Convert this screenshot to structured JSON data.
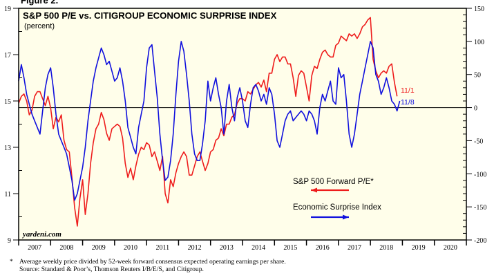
{
  "figure_label": "Figure 2.",
  "footnote": {
    "star": "*",
    "line1": "Average weekly price divided by 52-week forward consensus expected operating earnings per share.",
    "line2": "Source: Standard & Poor’s, Thomson Reuters I/B/E/S, and Citigroup."
  },
  "chart_data": {
    "type": "line",
    "title": "S&P 500 P/E vs. CITIGROUP ECONOMIC SURPRISE INDEX",
    "subtitle": "(percent)",
    "watermark": "yardeni.com",
    "x_ticks": [
      "2007",
      "2008",
      "2009",
      "2010",
      "2011",
      "2012",
      "2013",
      "2014",
      "2015",
      "2016",
      "2017",
      "2018",
      "2019",
      "2020"
    ],
    "xlim": [
      2007,
      2021
    ],
    "left_axis": {
      "ylim": [
        9,
        19
      ],
      "ticks": [
        9,
        11,
        13,
        15,
        17,
        19
      ],
      "minor_step": 1
    },
    "right_axis": {
      "ylim": [
        -200,
        150
      ],
      "ticks": [
        -200,
        -150,
        -100,
        -50,
        0,
        50,
        100,
        150
      ],
      "minor_step": 10
    },
    "zero_line": {
      "axis": "right",
      "value": 0
    },
    "background_color": "#fffeea",
    "series": [
      {
        "name": "S&P 500 Forward P/E*",
        "axis": "left",
        "color": "#ee1c1c",
        "end_label": "11/1",
        "legend_arrow": "left",
        "start": 2007.0,
        "step_years": 0.0833333,
        "values": [
          14.9,
          15.2,
          15.3,
          15.0,
          14.4,
          14.6,
          15.2,
          15.4,
          15.4,
          15.1,
          14.8,
          15.2,
          14.7,
          13.8,
          14.3,
          14.1,
          14.4,
          13.3,
          12.9,
          12.8,
          11.7,
          10.4,
          9.6,
          10.8,
          11.6,
          10.1,
          11.0,
          12.3,
          13.2,
          13.8,
          14.0,
          14.5,
          14.2,
          13.6,
          13.3,
          13.8,
          13.9,
          14.0,
          13.9,
          13.4,
          12.3,
          11.7,
          12.1,
          11.6,
          12.2,
          12.7,
          13.0,
          12.9,
          13.2,
          13.1,
          12.6,
          12.8,
          12.4,
          12.0,
          12.6,
          11.0,
          10.6,
          11.6,
          11.3,
          11.9,
          12.3,
          12.6,
          12.8,
          12.6,
          11.8,
          11.8,
          12.2,
          12.6,
          12.8,
          12.4,
          12.0,
          12.3,
          12.8,
          12.9,
          13.3,
          13.4,
          13.8,
          13.5,
          14.0,
          14.0,
          14.3,
          14.4,
          14.9,
          15.1,
          15.1,
          15.0,
          15.4,
          15.3,
          15.5,
          15.7,
          15.8,
          15.6,
          15.9,
          15.4,
          16.2,
          16.2,
          16.8,
          17.0,
          16.7,
          16.9,
          16.9,
          16.6,
          16.6,
          16.0,
          15.2,
          16.1,
          16.3,
          16.2,
          15.6,
          15.0,
          16.1,
          16.5,
          16.4,
          16.8,
          17.1,
          17.2,
          17.0,
          16.9,
          16.9,
          17.4,
          17.5,
          17.8,
          17.7,
          17.6,
          17.9,
          17.8,
          17.9,
          17.7,
          17.9,
          18.2,
          18.3,
          18.5,
          18.6,
          16.8,
          16.3,
          16.0,
          16.2,
          16.3,
          16.2,
          16.5,
          16.6,
          15.8,
          15.2
        ]
      },
      {
        "name": "Economic Surprise Index",
        "axis": "right",
        "color": "#1010dd",
        "end_label": "11/8",
        "legend_arrow": "right",
        "start": 2007.0,
        "step_years": 0.0833333,
        "values": [
          40,
          65,
          45,
          20,
          5,
          -10,
          -20,
          -30,
          -40,
          -5,
          30,
          50,
          60,
          30,
          -10,
          -40,
          -50,
          -60,
          -70,
          -90,
          -110,
          -140,
          -130,
          -110,
          -90,
          -60,
          -20,
          10,
          40,
          60,
          75,
          90,
          80,
          65,
          70,
          55,
          40,
          45,
          60,
          40,
          10,
          -30,
          -45,
          -60,
          -70,
          -30,
          -10,
          10,
          60,
          90,
          95,
          55,
          15,
          -40,
          -80,
          -110,
          -105,
          -80,
          -40,
          20,
          70,
          100,
          85,
          50,
          10,
          -40,
          -70,
          -80,
          -80,
          -55,
          -20,
          40,
          10,
          30,
          45,
          20,
          0,
          -40,
          10,
          35,
          0,
          -20,
          15,
          30,
          10,
          -20,
          -30,
          5,
          30,
          35,
          25,
          10,
          20,
          5,
          30,
          20,
          -10,
          -50,
          -60,
          -40,
          -20,
          -10,
          -5,
          -20,
          -15,
          -10,
          -5,
          -10,
          -20,
          -5,
          -10,
          -20,
          -40,
          0,
          20,
          10,
          25,
          40,
          10,
          5,
          60,
          45,
          50,
          10,
          -40,
          -60,
          -40,
          -10,
          20,
          40,
          60,
          80,
          100,
          90,
          50,
          40,
          20,
          30,
          45,
          30,
          10,
          5,
          -5,
          10
        ]
      }
    ]
  }
}
